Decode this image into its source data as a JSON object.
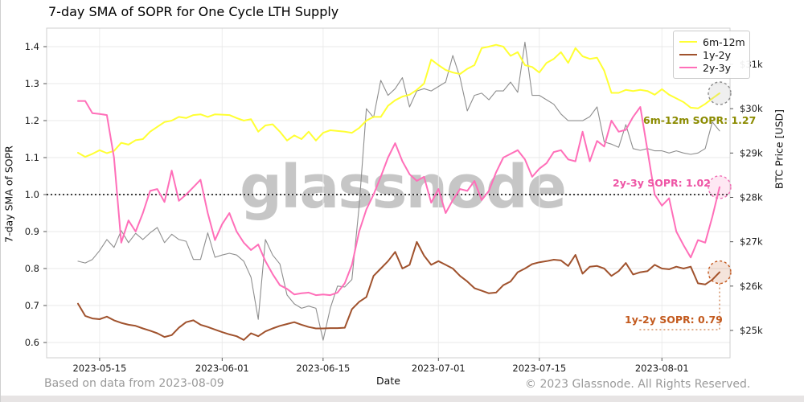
{
  "title": "7-day SMA of SOPR for One Cycle LTH Supply",
  "watermark": "glassnode",
  "axes": {
    "left_label": "7-day SMA of SOPR",
    "right_label": "BTC Price [USD]",
    "x_label": "Date"
  },
  "legend": {
    "items": [
      {
        "label": "6m-12m",
        "color": "#ffff33"
      },
      {
        "label": "1y-2y",
        "color": "#a0522d"
      },
      {
        "label": "2y-3y",
        "color": "#ff6fb9"
      }
    ]
  },
  "annotations": {
    "a6m": {
      "text": "6m-12m SOPR: 1.27",
      "color": "#8b8b00"
    },
    "a2y3y": {
      "text": "2y-3y SOPR: 1.02",
      "color": "#ee55a5"
    },
    "a1y2y": {
      "text": "1y-2y SOPR: 0.79",
      "color": "#c35a1e"
    }
  },
  "footer": {
    "left": "Based on data from 2023-08-09",
    "right": "© 2023 Glassnode. All Rights Reserved."
  },
  "chart_data": {
    "type": "line",
    "title": "7-day SMA of SOPR for One Cycle LTH Supply",
    "xlabel": "Date",
    "ylabel_left": "7-day SMA of SOPR",
    "ylabel_right": "BTC Price [USD]",
    "baseline": 1.0,
    "grid": true,
    "legend_position": "top-right",
    "left_ticks": [
      {
        "label": "1.4",
        "value": 1.4
      },
      {
        "label": "1.3",
        "value": 1.3
      },
      {
        "label": "1.2",
        "value": 1.2
      },
      {
        "label": "1.1",
        "value": 1.1
      },
      {
        "label": "1.0",
        "value": 1.0
      },
      {
        "label": "0.9",
        "value": 0.9
      },
      {
        "label": "0.8",
        "value": 0.8
      },
      {
        "label": "0.7",
        "value": 0.7
      },
      {
        "label": "0.6",
        "value": 0.6
      }
    ],
    "right_ticks": [
      {
        "label": "$31k",
        "value": 31
      },
      {
        "label": "$30k",
        "value": 30
      },
      {
        "label": "$29k",
        "value": 29
      },
      {
        "label": "$28k",
        "value": 28
      },
      {
        "label": "$27k",
        "value": 27
      },
      {
        "label": "$26k",
        "value": 26
      },
      {
        "label": "$25k",
        "value": 25
      }
    ],
    "x_ticks": [
      "2023-05-15",
      "2023-06-01",
      "2023-06-15",
      "2023-07-01",
      "2023-07-15",
      "2023-08-01"
    ],
    "ylim_left": [
      0.56,
      1.45
    ],
    "ylim_right": [
      24.4,
      31.8
    ],
    "x": [
      "2023-05-12",
      "2023-05-13",
      "2023-05-14",
      "2023-05-15",
      "2023-05-16",
      "2023-05-17",
      "2023-05-18",
      "2023-05-19",
      "2023-05-20",
      "2023-05-21",
      "2023-05-22",
      "2023-05-23",
      "2023-05-24",
      "2023-05-25",
      "2023-05-26",
      "2023-05-27",
      "2023-05-28",
      "2023-05-29",
      "2023-05-30",
      "2023-05-31",
      "2023-06-01",
      "2023-06-02",
      "2023-06-03",
      "2023-06-04",
      "2023-06-05",
      "2023-06-06",
      "2023-06-07",
      "2023-06-08",
      "2023-06-09",
      "2023-06-10",
      "2023-06-11",
      "2023-06-12",
      "2023-06-13",
      "2023-06-14",
      "2023-06-15",
      "2023-06-16",
      "2023-06-17",
      "2023-06-18",
      "2023-06-19",
      "2023-06-20",
      "2023-06-21",
      "2023-06-22",
      "2023-06-23",
      "2023-06-24",
      "2023-06-25",
      "2023-06-26",
      "2023-06-27",
      "2023-06-28",
      "2023-06-29",
      "2023-06-30",
      "2023-07-01",
      "2023-07-02",
      "2023-07-03",
      "2023-07-04",
      "2023-07-05",
      "2023-07-06",
      "2023-07-07",
      "2023-07-08",
      "2023-07-09",
      "2023-07-10",
      "2023-07-11",
      "2023-07-12",
      "2023-07-13",
      "2023-07-14",
      "2023-07-15",
      "2023-07-16",
      "2023-07-17",
      "2023-07-18",
      "2023-07-19",
      "2023-07-20",
      "2023-07-21",
      "2023-07-22",
      "2023-07-23",
      "2023-07-24",
      "2023-07-25",
      "2023-07-26",
      "2023-07-27",
      "2023-07-28",
      "2023-07-29",
      "2023-07-30",
      "2023-07-31",
      "2023-08-01",
      "2023-08-02",
      "2023-08-03",
      "2023-08-04",
      "2023-08-05",
      "2023-08-06",
      "2023-08-07",
      "2023-08-08",
      "2023-08-09"
    ],
    "series": [
      {
        "name": "BTC Price",
        "axis": "right",
        "color": "#8e8e8e",
        "width": 1.1,
        "values": [
          26.56,
          26.52,
          26.6,
          26.8,
          27.05,
          26.87,
          27.25,
          26.98,
          27.19,
          27.05,
          27.2,
          27.32,
          26.98,
          27.17,
          27.05,
          27.01,
          26.6,
          26.6,
          27.2,
          26.65,
          26.7,
          26.74,
          26.7,
          26.56,
          26.2,
          25.25,
          27.05,
          26.7,
          26.5,
          25.8,
          25.6,
          25.5,
          25.55,
          25.5,
          24.78,
          25.5,
          26.0,
          25.98,
          26.15,
          27.8,
          30.0,
          29.8,
          30.64,
          30.3,
          30.45,
          30.7,
          30.04,
          30.4,
          30.45,
          30.4,
          30.5,
          30.6,
          31.2,
          30.7,
          29.95,
          30.3,
          30.35,
          30.2,
          30.4,
          30.4,
          30.6,
          30.37,
          31.5,
          30.3,
          30.3,
          30.2,
          30.1,
          29.88,
          29.73,
          29.73,
          29.73,
          29.82,
          30.04,
          29.25,
          29.2,
          29.13,
          29.64,
          29.1,
          29.06,
          29.1,
          29.05,
          29.05,
          29.0,
          29.05,
          29.0,
          28.97,
          29.0,
          29.1,
          29.7,
          29.5
        ]
      },
      {
        "name": "6m-12m",
        "axis": "left",
        "color": "#ffff33",
        "width": 2,
        "end_value_label": "1.27",
        "end_marker": {
          "stroke": "#8a8a8a",
          "fill": "rgba(190,190,190,0.25)"
        },
        "values": [
          1.113,
          1.102,
          1.11,
          1.12,
          1.112,
          1.118,
          1.14,
          1.135,
          1.147,
          1.15,
          1.17,
          1.183,
          1.196,
          1.2,
          1.21,
          1.207,
          1.215,
          1.217,
          1.21,
          1.217,
          1.216,
          1.215,
          1.207,
          1.2,
          1.204,
          1.17,
          1.187,
          1.19,
          1.17,
          1.146,
          1.16,
          1.15,
          1.17,
          1.146,
          1.167,
          1.174,
          1.172,
          1.17,
          1.167,
          1.18,
          1.2,
          1.21,
          1.21,
          1.24,
          1.255,
          1.265,
          1.27,
          1.283,
          1.3,
          1.365,
          1.35,
          1.337,
          1.33,
          1.326,
          1.34,
          1.35,
          1.396,
          1.4,
          1.405,
          1.4,
          1.375,
          1.385,
          1.35,
          1.345,
          1.33,
          1.356,
          1.367,
          1.385,
          1.356,
          1.396,
          1.374,
          1.367,
          1.37,
          1.335,
          1.275,
          1.275,
          1.283,
          1.28,
          1.283,
          1.28,
          1.27,
          1.285,
          1.27,
          1.26,
          1.25,
          1.235,
          1.233,
          1.245,
          1.26,
          1.274
        ]
      },
      {
        "name": "1y-2y",
        "axis": "left",
        "color": "#a0522d",
        "width": 2,
        "end_value_label": "0.79",
        "end_marker": {
          "stroke": "#c3571d",
          "fill": "rgba(195,87,29,0.16)"
        },
        "connector": true,
        "values": [
          0.705,
          0.672,
          0.665,
          0.663,
          0.67,
          0.66,
          0.653,
          0.648,
          0.645,
          0.638,
          0.632,
          0.625,
          0.615,
          0.62,
          0.64,
          0.655,
          0.66,
          0.648,
          0.642,
          0.635,
          0.628,
          0.622,
          0.617,
          0.607,
          0.625,
          0.617,
          0.63,
          0.638,
          0.645,
          0.65,
          0.655,
          0.648,
          0.642,
          0.638,
          0.638,
          0.639,
          0.639,
          0.64,
          0.69,
          0.71,
          0.723,
          0.78,
          0.8,
          0.82,
          0.845,
          0.8,
          0.81,
          0.872,
          0.835,
          0.81,
          0.82,
          0.81,
          0.8,
          0.78,
          0.765,
          0.747,
          0.74,
          0.733,
          0.735,
          0.755,
          0.765,
          0.79,
          0.8,
          0.812,
          0.817,
          0.82,
          0.824,
          0.822,
          0.807,
          0.837,
          0.786,
          0.805,
          0.807,
          0.8,
          0.78,
          0.793,
          0.815,
          0.784,
          0.79,
          0.793,
          0.81,
          0.8,
          0.798,
          0.805,
          0.8,
          0.805,
          0.76,
          0.757,
          0.77,
          0.79
        ]
      },
      {
        "name": "2y-3y",
        "axis": "left",
        "color": "#ff6fb9",
        "width": 2,
        "end_value_label": "1.02",
        "end_marker": {
          "stroke": "#f06eb5",
          "fill": "rgba(246,110,181,0.16)"
        },
        "values": [
          1.253,
          1.253,
          1.22,
          1.218,
          1.215,
          1.1,
          0.87,
          0.93,
          0.9,
          0.95,
          1.01,
          1.015,
          0.98,
          1.065,
          0.983,
          1.0,
          1.02,
          1.04,
          0.95,
          0.877,
          0.92,
          0.95,
          0.9,
          0.87,
          0.85,
          0.865,
          0.82,
          0.785,
          0.755,
          0.745,
          0.73,
          0.733,
          0.735,
          0.728,
          0.73,
          0.728,
          0.735,
          0.76,
          0.81,
          0.9,
          0.96,
          1.0,
          1.048,
          1.1,
          1.139,
          1.09,
          1.055,
          1.037,
          1.048,
          0.978,
          1.015,
          0.95,
          0.985,
          1.015,
          1.01,
          1.037,
          0.985,
          1.01,
          1.06,
          1.1,
          1.11,
          1.12,
          1.095,
          1.048,
          1.07,
          1.085,
          1.115,
          1.12,
          1.095,
          1.09,
          1.17,
          1.09,
          1.145,
          1.13,
          1.2,
          1.17,
          1.175,
          1.21,
          1.237,
          1.12,
          1.0,
          0.97,
          0.99,
          0.9,
          0.863,
          0.83,
          0.877,
          0.87,
          0.94,
          1.02
        ]
      }
    ]
  }
}
